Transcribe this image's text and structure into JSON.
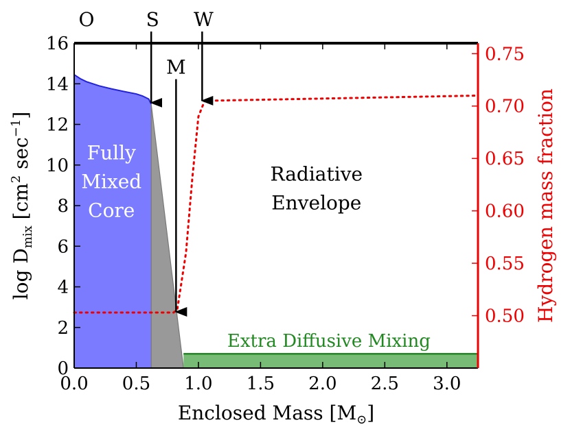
{
  "chart_data": {
    "type": "area",
    "xlabel_main": "Enclosed Mass [M",
    "xlabel_sub": "⊙",
    "xlabel_end": "]",
    "ylabel_left": "log D",
    "ylabel_left_sub": "mix",
    "ylabel_left_units": "[cm",
    "ylabel_left_units_sup": "2",
    "ylabel_left_units_mid": " sec",
    "ylabel_left_units_sup2": "−1",
    "ylabel_left_units_end": "]",
    "ylabel_right": "Hydrogen mass fraction",
    "xlim": [
      0.0,
      3.25
    ],
    "ylim_left": [
      0,
      16
    ],
    "ylim_right": [
      0.45,
      0.76
    ],
    "x_ticks": [
      "0.0",
      "0.5",
      "1.0",
      "1.5",
      "2.0",
      "2.5",
      "3.0"
    ],
    "x_tick_values": [
      0.0,
      0.5,
      1.0,
      1.5,
      2.0,
      2.5,
      3.0
    ],
    "y_left_ticks": [
      "0",
      "2",
      "4",
      "6",
      "8",
      "10",
      "12",
      "14",
      "16"
    ],
    "y_left_tick_values": [
      0,
      2,
      4,
      6,
      8,
      10,
      12,
      14,
      16
    ],
    "y_right_ticks": [
      "0.50",
      "0.55",
      "0.60",
      "0.65",
      "0.70",
      "0.75"
    ],
    "y_right_tick_values": [
      0.5,
      0.55,
      0.6,
      0.65,
      0.7,
      0.75
    ],
    "regions": {
      "core": {
        "label_lines": [
          "Fully",
          "Mixed",
          "Core"
        ],
        "color": "#7b7bff",
        "edge_color": "#2222dd",
        "x": [
          0.0,
          0.05,
          0.1,
          0.2,
          0.3,
          0.4,
          0.5,
          0.55,
          0.6,
          0.62
        ],
        "y": [
          14.45,
          14.25,
          14.1,
          13.9,
          13.75,
          13.62,
          13.5,
          13.4,
          13.25,
          13.0
        ]
      },
      "overshoot": {
        "color": "#999999",
        "x": [
          0.62,
          0.88
        ],
        "y_top": [
          13.0,
          0.0
        ]
      },
      "envelope": {
        "label_lines": [
          "Radiative",
          "Envelope"
        ]
      },
      "extra_mixing": {
        "label": "Extra Diffusive Mixing",
        "color": "#77bb77",
        "edge_color": "#228822",
        "x": [
          0.88,
          3.25
        ],
        "y": 0.7
      }
    },
    "hydrogen_profile": {
      "color": "#ee0000",
      "x": [
        0.0,
        0.8,
        0.83,
        0.9,
        0.95,
        1.0,
        1.05,
        3.25
      ],
      "y": [
        0.503,
        0.503,
        0.506,
        0.56,
        0.63,
        0.69,
        0.705,
        0.71
      ]
    },
    "markers": [
      {
        "label": "O",
        "x": 0.0,
        "arrow": false
      },
      {
        "label": "S",
        "x": 0.62,
        "arrow": true,
        "y_end": 13.0
      },
      {
        "label": "M",
        "x": 0.82,
        "arrow": true,
        "y_end": 2.7,
        "label_y": 14.5
      },
      {
        "label": "W",
        "x": 1.03,
        "arrow": true,
        "y_end": 13.1
      }
    ]
  }
}
